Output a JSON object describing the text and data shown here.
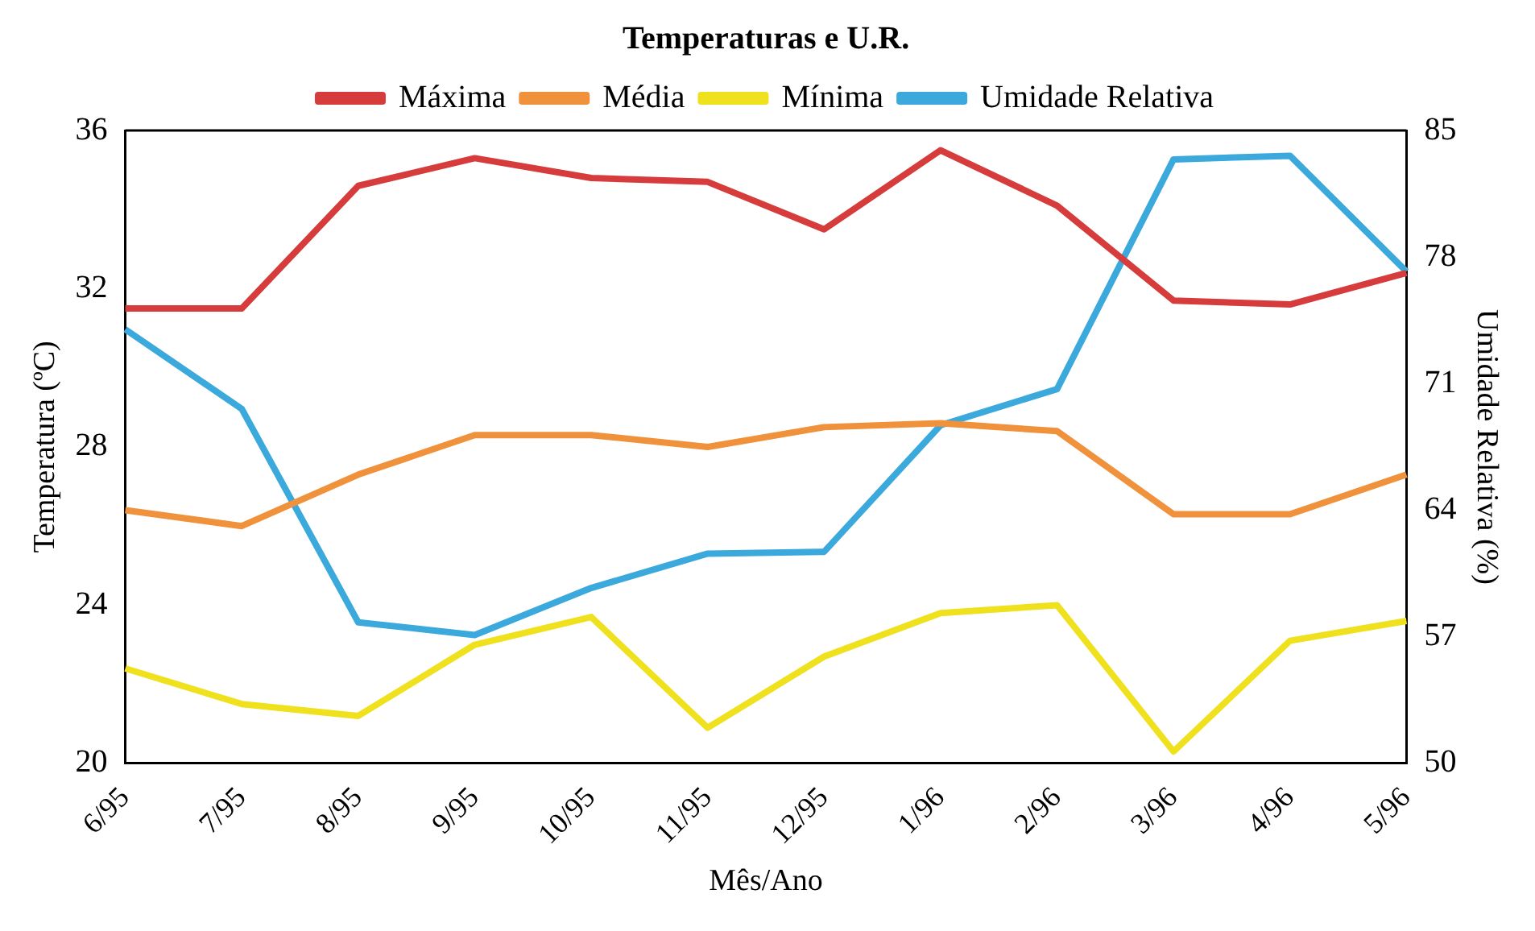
{
  "chart_data": {
    "type": "line",
    "legend_title": "Temperaturas e U.R.",
    "xlabel": "Mês/Ano",
    "ylabel": "Temperatura (ºC)",
    "y2label": "Umidade Relativa (%)",
    "categories": [
      "6/95",
      "7/95",
      "8/95",
      "9/95",
      "10/95",
      "11/95",
      "12/95",
      "1/96",
      "2/96",
      "3/96",
      "4/96",
      "5/96"
    ],
    "series": [
      {
        "name": "Máxima",
        "color": "#d63c3c",
        "values": [
          31.5,
          31.5,
          34.6,
          35.3,
          34.8,
          34.7,
          33.5,
          35.5,
          34.1,
          31.7,
          31.6,
          32.4
        ]
      },
      {
        "name": "Média",
        "color": "#f0913c",
        "values": [
          26.4,
          26.0,
          27.3,
          28.3,
          28.3,
          28.0,
          28.5,
          28.6,
          28.4,
          26.3,
          26.3,
          27.3
        ]
      },
      {
        "name": "Mínima",
        "color": "#f0e11e",
        "values": [
          22.4,
          21.5,
          21.2,
          23.0,
          23.7,
          20.9,
          22.7,
          23.8,
          24.0,
          20.3,
          23.1,
          23.6
        ]
      },
      {
        "name": "Umidade Relativa",
        "color": "#3ba9dc",
        "axis": "y2",
        "values": [
          74.0,
          69.6,
          57.8,
          57.1,
          59.7,
          61.6,
          61.7,
          68.7,
          70.7,
          83.4,
          83.6,
          77.2
        ]
      }
    ],
    "ylim": [
      20,
      36
    ],
    "yticks": [
      20,
      24,
      28,
      32,
      36
    ],
    "y2lim": [
      50,
      85
    ],
    "y2ticks": [
      50,
      57,
      64,
      71,
      78,
      85
    ],
    "grid": false,
    "legend": "top",
    "marker": "none",
    "line_style": "solid"
  }
}
